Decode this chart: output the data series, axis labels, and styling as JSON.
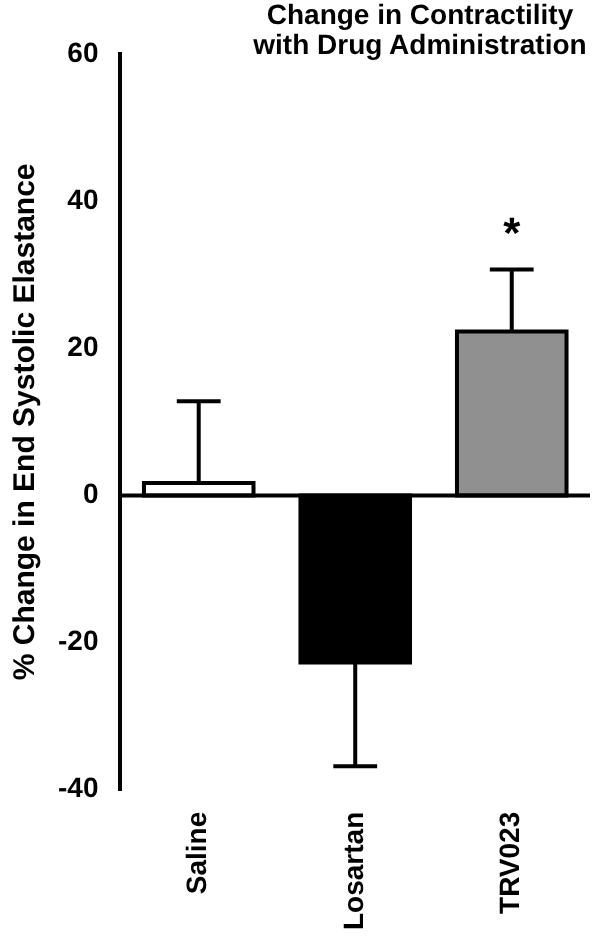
{
  "chart_data": {
    "type": "bar",
    "title": "Change in Contractility with Drug Administration",
    "ylabel": "% Change in End Systolic Elastance",
    "categories": [
      "Saline",
      "Losartan",
      "TRV023"
    ],
    "values": [
      1.7,
      -22.7,
      22.3
    ],
    "colors": [
      "#ffffff",
      "#000000",
      "#909090"
    ],
    "errors": [
      [
        1.7,
        12.8
      ],
      [
        -36.8,
        -22.7
      ],
      [
        22.3,
        30.7
      ]
    ],
    "annotations": [
      "*"
    ],
    "ylim": [
      -40,
      60
    ],
    "yticks": [
      -40,
      -20,
      0,
      20,
      40,
      60
    ]
  }
}
